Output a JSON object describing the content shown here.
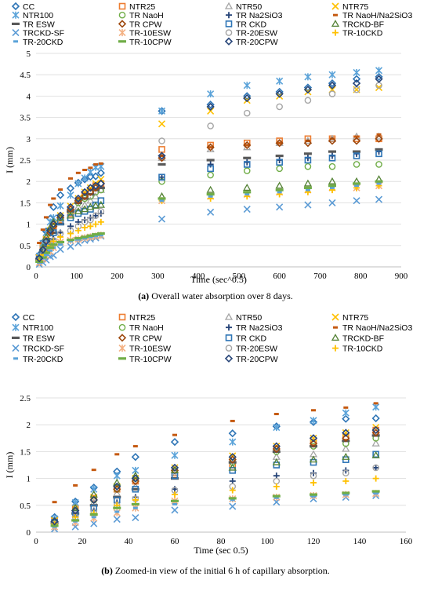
{
  "chart_data": [
    {
      "type": "scatter",
      "title": "",
      "xlabel": "Time (sec^0.5)",
      "ylabel": "I (mm)",
      "xlim": [
        0,
        900
      ],
      "ylim": [
        0,
        5
      ],
      "xticks": [
        "0",
        "100",
        "200",
        "300",
        "400",
        "500",
        "600",
        "700",
        "800",
        "900"
      ],
      "yticks": [
        "0",
        "0.5",
        "1",
        "1.5",
        "2",
        "2.5",
        "3",
        "3.5",
        "4",
        "4.5",
        "5"
      ],
      "legend_position": "top",
      "caption_label": "(a)",
      "caption_text": " Overall water absorption over 8 days.",
      "x": [
        8,
        17,
        25,
        35,
        43,
        60,
        85,
        104,
        120,
        134,
        147,
        160,
        310,
        430,
        520,
        600,
        670,
        730,
        790,
        845
      ],
      "series": [
        {
          "name": "CC",
          "marker": "diamond-open",
          "color": "#2E75B6",
          "values": [
            0.28,
            0.57,
            0.83,
            1.13,
            1.4,
            1.68,
            1.84,
            1.97,
            2.05,
            2.11,
            2.12,
            2.2,
            3.65,
            3.8,
            4.0,
            4.1,
            4.2,
            4.3,
            4.4,
            4.45
          ]
        },
        {
          "name": "NTR25",
          "marker": "square-open",
          "color": "#ED7D31",
          "values": [
            0.22,
            0.45,
            0.63,
            0.8,
            0.95,
            1.1,
            1.25,
            1.55,
            1.68,
            1.78,
            1.9,
            1.95,
            2.75,
            2.85,
            2.9,
            2.95,
            3.0,
            3.0,
            3.0,
            3.0
          ]
        },
        {
          "name": "NTR50",
          "marker": "triangle-open",
          "color": "#A5A5A5",
          "values": [
            0.2,
            0.38,
            0.55,
            0.72,
            0.85,
            1.05,
            1.2,
            1.4,
            1.45,
            1.55,
            1.65,
            1.8,
            2.55,
            2.75,
            2.8,
            2.9,
            2.95,
            3.0,
            3.05,
            3.05
          ]
        },
        {
          "name": "NTR75",
          "marker": "x",
          "color": "#FFC000",
          "values": [
            0.22,
            0.45,
            0.65,
            0.85,
            1.0,
            1.2,
            1.42,
            1.6,
            1.75,
            1.85,
            1.95,
            2.05,
            3.35,
            3.65,
            3.9,
            4.0,
            4.1,
            4.15,
            4.15,
            4.2
          ]
        },
        {
          "name": "NTR100",
          "marker": "asterisk",
          "color": "#5BA3D9",
          "values": [
            0.25,
            0.55,
            0.8,
            1.05,
            1.15,
            1.43,
            1.68,
            1.95,
            2.08,
            2.22,
            2.33,
            2.35,
            3.65,
            4.05,
            4.25,
            4.35,
            4.45,
            4.5,
            4.55,
            4.6
          ]
        },
        {
          "name": "TR NaoH",
          "marker": "circle-open",
          "color": "#70AD47",
          "values": [
            0.2,
            0.4,
            0.6,
            0.8,
            1.0,
            1.15,
            1.3,
            1.5,
            1.6,
            1.65,
            1.75,
            1.8,
            2.0,
            2.15,
            2.25,
            2.3,
            2.35,
            2.35,
            2.4,
            2.4
          ]
        },
        {
          "name": "TR Na2SiO3",
          "marker": "plus",
          "color": "#264478",
          "values": [
            0.15,
            0.3,
            0.4,
            0.55,
            0.65,
            0.8,
            0.95,
            1.05,
            1.1,
            1.15,
            1.2,
            1.25,
            2.1,
            2.4,
            2.45,
            2.5,
            2.55,
            2.6,
            2.65,
            2.7
          ]
        },
        {
          "name": "TR NaoH/Na2SiO3",
          "marker": "dash",
          "color": "#C55A11",
          "values": [
            0.56,
            0.87,
            1.16,
            1.45,
            1.6,
            1.81,
            2.07,
            2.2,
            2.27,
            2.32,
            2.4,
            2.42,
            2.6,
            2.8,
            2.85,
            2.9,
            2.95,
            3.0,
            3.05,
            3.1
          ]
        },
        {
          "name": "TR ESW",
          "marker": "dash-wide",
          "color": "#595959",
          "values": [
            0.18,
            0.35,
            0.5,
            0.65,
            0.8,
            1.0,
            1.3,
            1.5,
            1.6,
            1.7,
            1.8,
            1.85,
            2.4,
            2.5,
            2.55,
            2.6,
            2.65,
            2.7,
            2.7,
            2.75
          ]
        },
        {
          "name": "TR CPW",
          "marker": "diamond-open",
          "color": "#9E480E",
          "values": [
            0.2,
            0.4,
            0.6,
            0.8,
            0.95,
            1.15,
            1.35,
            1.55,
            1.65,
            1.75,
            1.85,
            1.95,
            2.55,
            2.8,
            2.85,
            2.9,
            2.9,
            2.95,
            2.95,
            3.0
          ]
        },
        {
          "name": "TR CKD",
          "marker": "square-open",
          "color": "#2E75B6",
          "values": [
            0.18,
            0.35,
            0.45,
            0.6,
            0.8,
            1.05,
            1.15,
            1.25,
            1.3,
            1.35,
            1.45,
            1.55,
            2.1,
            2.3,
            2.4,
            2.45,
            2.5,
            2.55,
            2.6,
            2.65
          ]
        },
        {
          "name": "TRCKD-BF",
          "marker": "triangle-open",
          "color": "#548235",
          "values": [
            0.2,
            0.45,
            0.7,
            0.92,
            1.05,
            1.15,
            1.2,
            1.3,
            1.35,
            1.4,
            1.43,
            1.45,
            1.65,
            1.8,
            1.85,
            1.9,
            1.95,
            2.0,
            2.0,
            2.05
          ]
        },
        {
          "name": "TRCKD-SF",
          "marker": "x",
          "color": "#5B9BD5",
          "values": [
            0.06,
            0.1,
            0.16,
            0.24,
            0.27,
            0.41,
            0.48,
            0.56,
            0.62,
            0.65,
            0.68,
            0.72,
            1.12,
            1.28,
            1.35,
            1.4,
            1.45,
            1.5,
            1.55,
            1.58
          ]
        },
        {
          "name": "TR-10ESW",
          "marker": "asterisk",
          "color": "#F4B183",
          "values": [
            0.1,
            0.18,
            0.26,
            0.36,
            0.45,
            0.58,
            0.62,
            0.65,
            0.68,
            0.7,
            0.72,
            0.74,
            1.55,
            1.65,
            1.7,
            1.75,
            1.8,
            1.85,
            1.85,
            1.9
          ]
        },
        {
          "name": "TR-20ESW",
          "marker": "circle-open",
          "color": "#A5A5A5",
          "values": [
            0.15,
            0.28,
            0.38,
            0.5,
            0.62,
            0.78,
            0.85,
            0.95,
            1.05,
            1.1,
            1.2,
            1.3,
            2.95,
            3.3,
            3.6,
            3.75,
            3.9,
            4.05,
            4.15,
            4.25
          ]
        },
        {
          "name": "TR-10CKD",
          "marker": "plus",
          "color": "#FFC000",
          "values": [
            0.15,
            0.28,
            0.35,
            0.5,
            0.6,
            0.7,
            0.78,
            0.85,
            0.92,
            0.95,
            1.0,
            1.05,
            1.55,
            1.6,
            1.65,
            1.7,
            1.75,
            1.8,
            1.85,
            1.9
          ]
        },
        {
          "name": "TR-20CKD",
          "marker": "dash",
          "color": "#5BA3D9",
          "values": [
            0.1,
            0.2,
            0.28,
            0.38,
            0.45,
            0.52,
            0.6,
            0.64,
            0.67,
            0.7,
            0.72,
            0.74,
            1.55,
            1.65,
            1.7,
            1.75,
            1.8,
            1.85,
            1.9,
            1.95
          ]
        },
        {
          "name": "TR-10CPW",
          "marker": "dash-wide",
          "color": "#70AD47",
          "values": [
            0.12,
            0.22,
            0.33,
            0.45,
            0.52,
            0.58,
            0.63,
            0.67,
            0.7,
            0.73,
            0.76,
            0.78,
            1.6,
            1.7,
            1.75,
            1.8,
            1.85,
            1.9,
            1.95,
            2.0
          ]
        },
        {
          "name": "TR-20CPW",
          "marker": "diamond-open",
          "color": "#264478",
          "values": [
            0.2,
            0.4,
            0.6,
            0.85,
            1.0,
            1.2,
            1.4,
            1.6,
            1.75,
            1.85,
            1.9,
            1.95,
            2.6,
            3.75,
            3.95,
            4.05,
            4.15,
            4.25,
            4.3,
            4.4
          ]
        }
      ]
    },
    {
      "type": "scatter",
      "title": "",
      "xlabel": "Time (sec 0.5)",
      "ylabel": "I (mm)",
      "xlim": [
        0,
        160
      ],
      "ylim": [
        0,
        2.5
      ],
      "xticks": [
        "0",
        "20",
        "40",
        "60",
        "80",
        "100",
        "120",
        "140",
        "160"
      ],
      "yticks": [
        "0",
        "0.5",
        "1",
        "1.5",
        "2",
        "2.5"
      ],
      "legend_position": "top",
      "caption_label": "(b)",
      "caption_text": " Zoomed-in view of the initial 6 h of capillary absorption.",
      "x": [
        8,
        17,
        25,
        35,
        43,
        60,
        85,
        104,
        120,
        134,
        147
      ],
      "series_ref": "same series as chart 0, first 11 x values"
    }
  ]
}
